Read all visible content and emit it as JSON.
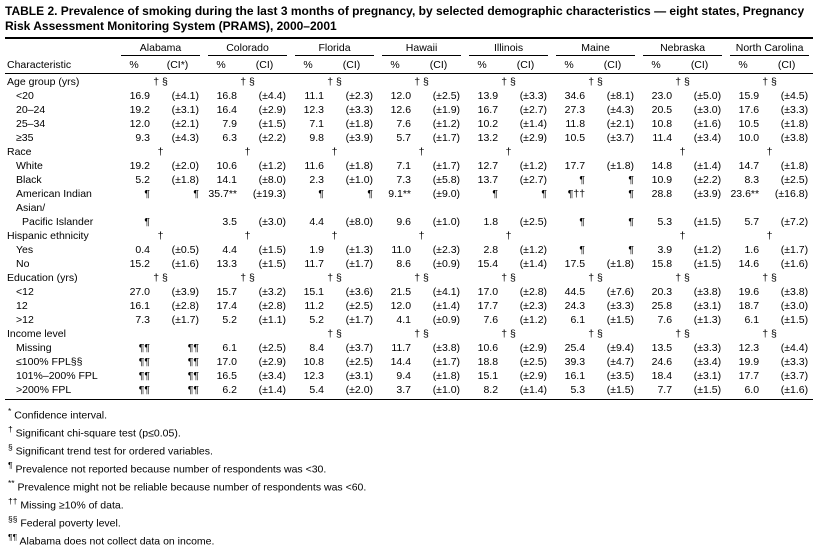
{
  "title": "TABLE 2. Prevalence of smoking during the last 3 months of pregnancy, by selected demographic characteristics — eight states, Pregnancy Risk Assessment Monitoring System (PRAMS), 2000–2001",
  "table": {
    "characteristic_header": "Characteristic",
    "states": [
      {
        "name": "Alabama",
        "pct_label": "%",
        "ci_label": "(CI*)"
      },
      {
        "name": "Colorado",
        "pct_label": "%",
        "ci_label": "(CI)"
      },
      {
        "name": "Florida",
        "pct_label": "%",
        "ci_label": "(CI)"
      },
      {
        "name": "Hawaii",
        "pct_label": "%",
        "ci_label": "(CI)"
      },
      {
        "name": "Illinois",
        "pct_label": "%",
        "ci_label": "(CI)"
      },
      {
        "name": "Maine",
        "pct_label": "%",
        "ci_label": "(CI)"
      },
      {
        "name": "Nebraska",
        "pct_label": "%",
        "ci_label": "(CI)"
      },
      {
        "name": "North Carolina",
        "pct_label": "%",
        "ci_label": "(CI)"
      }
    ],
    "rows": [
      {
        "type": "section",
        "label": "Age group (yrs)",
        "markers": [
          "† §",
          "† §",
          "† §",
          "† §",
          "† §",
          "† §",
          "† §",
          "† §"
        ]
      },
      {
        "type": "data",
        "label": "<20",
        "cells": [
          [
            "16.9",
            "(±4.1)"
          ],
          [
            "16.8",
            "(±4.4)"
          ],
          [
            "11.1",
            "(±2.3)"
          ],
          [
            "12.0",
            "(±2.5)"
          ],
          [
            "13.9",
            "(±3.3)"
          ],
          [
            "34.6",
            "(±8.1)"
          ],
          [
            "23.0",
            "(±5.0)"
          ],
          [
            "15.9",
            "(±4.5)"
          ]
        ]
      },
      {
        "type": "data",
        "label": "20–24",
        "cells": [
          [
            "19.2",
            "(±3.1)"
          ],
          [
            "16.4",
            "(±2.9)"
          ],
          [
            "12.3",
            "(±3.3)"
          ],
          [
            "12.6",
            "(±1.9)"
          ],
          [
            "16.7",
            "(±2.7)"
          ],
          [
            "27.3",
            "(±4.3)"
          ],
          [
            "20.5",
            "(±3.0)"
          ],
          [
            "17.6",
            "(±3.3)"
          ]
        ]
      },
      {
        "type": "data",
        "label": "25–34",
        "cells": [
          [
            "12.0",
            "(±2.1)"
          ],
          [
            "7.9",
            "(±1.5)"
          ],
          [
            "7.1",
            "(±1.8)"
          ],
          [
            "7.6",
            "(±1.2)"
          ],
          [
            "10.2",
            "(±1.4)"
          ],
          [
            "11.8",
            "(±2.1)"
          ],
          [
            "10.8",
            "(±1.6)"
          ],
          [
            "10.5",
            "(±1.8)"
          ]
        ]
      },
      {
        "type": "data",
        "label": "≥35",
        "cells": [
          [
            "9.3",
            "(±4.3)"
          ],
          [
            "6.3",
            "(±2.2)"
          ],
          [
            "9.8",
            "(±3.9)"
          ],
          [
            "5.7",
            "(±1.7)"
          ],
          [
            "13.2",
            "(±2.9)"
          ],
          [
            "10.5",
            "(±3.7)"
          ],
          [
            "11.4",
            "(±3.4)"
          ],
          [
            "10.0",
            "(±3.8)"
          ]
        ]
      },
      {
        "type": "section",
        "label": "Race",
        "markers": [
          "†",
          "†",
          "†",
          "†",
          "†",
          "",
          "†",
          "†"
        ]
      },
      {
        "type": "data",
        "label": "White",
        "cells": [
          [
            "19.2",
            "(±2.0)"
          ],
          [
            "10.6",
            "(±1.2)"
          ],
          [
            "11.6",
            "(±1.8)"
          ],
          [
            "7.1",
            "(±1.7)"
          ],
          [
            "12.7",
            "(±1.2)"
          ],
          [
            "17.7",
            "(±1.8)"
          ],
          [
            "14.8",
            "(±1.4)"
          ],
          [
            "14.7",
            "(±1.8)"
          ]
        ]
      },
      {
        "type": "data",
        "label": "Black",
        "cells": [
          [
            "5.2",
            "(±1.8)"
          ],
          [
            "14.1",
            "(±8.0)"
          ],
          [
            "2.3",
            "(±1.0)"
          ],
          [
            "7.3",
            "(±5.8)"
          ],
          [
            "13.7",
            "(±2.7)"
          ],
          [
            "¶",
            "¶"
          ],
          [
            "10.9",
            "(±2.2)"
          ],
          [
            "8.3",
            "(±2.5)"
          ]
        ]
      },
      {
        "type": "data",
        "label": "American Indian",
        "cells": [
          [
            "¶",
            "¶"
          ],
          [
            "35.7**",
            "(±19.3)"
          ],
          [
            "¶",
            "¶"
          ],
          [
            "9.1**",
            "(±9.0)"
          ],
          [
            "¶",
            "¶"
          ],
          [
            "¶††",
            "¶"
          ],
          [
            "28.8",
            "(±3.9)"
          ],
          [
            "23.6**",
            "(±16.8)"
          ]
        ]
      },
      {
        "type": "label",
        "label": "Asian/"
      },
      {
        "type": "data",
        "label": "Pacific Islander",
        "indent": 2,
        "cells": [
          [
            "¶",
            ""
          ],
          [
            "3.5",
            "(±3.0)"
          ],
          [
            "4.4",
            "(±8.0)"
          ],
          [
            "9.6",
            "(±1.0)"
          ],
          [
            "1.8",
            "(±2.5)"
          ],
          [
            "¶",
            "¶"
          ],
          [
            "5.3",
            "(±1.5)"
          ],
          [
            "5.7",
            "(±7.2)"
          ]
        ]
      },
      {
        "type": "section",
        "label": "Hispanic ethnicity",
        "markers": [
          "†",
          "†",
          "†",
          "†",
          "†",
          "",
          "†",
          "†"
        ]
      },
      {
        "type": "data",
        "label": "Yes",
        "cells": [
          [
            "0.4",
            "(±0.5)"
          ],
          [
            "4.4",
            "(±1.5)"
          ],
          [
            "1.9",
            "(±1.3)"
          ],
          [
            "11.0",
            "(±2.3)"
          ],
          [
            "2.8",
            "(±1.2)"
          ],
          [
            "¶",
            "¶"
          ],
          [
            "3.9",
            "(±1.2)"
          ],
          [
            "1.6",
            "(±1.7)"
          ]
        ]
      },
      {
        "type": "data",
        "label": "No",
        "cells": [
          [
            "15.2",
            "(±1.6)"
          ],
          [
            "13.3",
            "(±1.5)"
          ],
          [
            "11.7",
            "(±1.7)"
          ],
          [
            "8.6",
            "(±0.9)"
          ],
          [
            "15.4",
            "(±1.4)"
          ],
          [
            "17.5",
            "(±1.8)"
          ],
          [
            "15.8",
            "(±1.5)"
          ],
          [
            "14.6",
            "(±1.6)"
          ]
        ]
      },
      {
        "type": "section",
        "label": "Education (yrs)",
        "markers": [
          "† §",
          "† §",
          "† §",
          "† §",
          "† §",
          "† §",
          "† §",
          "† §"
        ]
      },
      {
        "type": "data",
        "label": "<12",
        "cells": [
          [
            "27.0",
            "(±3.9)"
          ],
          [
            "15.7",
            "(±3.2)"
          ],
          [
            "15.1",
            "(±3.6)"
          ],
          [
            "21.5",
            "(±4.1)"
          ],
          [
            "17.0",
            "(±2.8)"
          ],
          [
            "44.5",
            "(±7.6)"
          ],
          [
            "20.3",
            "(±3.8)"
          ],
          [
            "19.6",
            "(±3.8)"
          ]
        ]
      },
      {
        "type": "data",
        "label": "12",
        "cells": [
          [
            "16.1",
            "(±2.8)"
          ],
          [
            "17.4",
            "(±2.8)"
          ],
          [
            "11.2",
            "(±2.5)"
          ],
          [
            "12.0",
            "(±1.4)"
          ],
          [
            "17.7",
            "(±2.3)"
          ],
          [
            "24.3",
            "(±3.3)"
          ],
          [
            "25.8",
            "(±3.1)"
          ],
          [
            "18.7",
            "(±3.0)"
          ]
        ]
      },
      {
        "type": "data",
        "label": ">12",
        "cells": [
          [
            "7.3",
            "(±1.7)"
          ],
          [
            "5.2",
            "(±1.1)"
          ],
          [
            "5.2",
            "(±1.7)"
          ],
          [
            "4.1",
            "(±0.9)"
          ],
          [
            "7.6",
            "(±1.2)"
          ],
          [
            "6.1",
            "(±1.5)"
          ],
          [
            "7.6",
            "(±1.3)"
          ],
          [
            "6.1",
            "(±1.5)"
          ]
        ]
      },
      {
        "type": "section",
        "label": "Income level",
        "markers": [
          "",
          "",
          "† §",
          "† §",
          "† §",
          "† §",
          "† §",
          "† §"
        ]
      },
      {
        "type": "data",
        "label": "Missing",
        "cells": [
          [
            "¶¶",
            "¶¶"
          ],
          [
            "6.1",
            "(±2.5)"
          ],
          [
            "8.4",
            "(±3.7)"
          ],
          [
            "11.7",
            "(±3.8)"
          ],
          [
            "10.6",
            "(±2.9)"
          ],
          [
            "25.4",
            "(±9.4)"
          ],
          [
            "13.5",
            "(±3.3)"
          ],
          [
            "12.3",
            "(±4.4)"
          ]
        ]
      },
      {
        "type": "data",
        "label": "≤100% FPL§§",
        "cells": [
          [
            "¶¶",
            "¶¶"
          ],
          [
            "17.0",
            "(±2.9)"
          ],
          [
            "10.8",
            "(±2.5)"
          ],
          [
            "14.4",
            "(±1.7)"
          ],
          [
            "18.8",
            "(±2.5)"
          ],
          [
            "39.3",
            "(±4.7)"
          ],
          [
            "24.6",
            "(±3.4)"
          ],
          [
            "19.9",
            "(±3.3)"
          ]
        ]
      },
      {
        "type": "data",
        "label": "101%–200% FPL",
        "cells": [
          [
            "¶¶",
            "¶¶"
          ],
          [
            "16.5",
            "(±3.4)"
          ],
          [
            "12.3",
            "(±3.1)"
          ],
          [
            "9.4",
            "(±1.8)"
          ],
          [
            "15.1",
            "(±2.9)"
          ],
          [
            "16.1",
            "(±3.5)"
          ],
          [
            "18.4",
            "(±3.1)"
          ],
          [
            "17.7",
            "(±3.7)"
          ]
        ]
      },
      {
        "type": "data",
        "label": ">200% FPL",
        "cells": [
          [
            "¶¶",
            "¶¶"
          ],
          [
            "6.2",
            "(±1.4)"
          ],
          [
            "5.4",
            "(±2.0)"
          ],
          [
            "3.7",
            "(±1.0)"
          ],
          [
            "8.2",
            "(±1.4)"
          ],
          [
            "5.3",
            "(±1.5)"
          ],
          [
            "7.7",
            "(±1.5)"
          ],
          [
            "6.0",
            "(±1.6)"
          ]
        ]
      }
    ]
  },
  "footnotes": [
    {
      "marker": "*",
      "text": "Confidence interval."
    },
    {
      "marker": "†",
      "text": "Significant chi-square test (p≤0.05)."
    },
    {
      "marker": "§",
      "text": "Significant trend test for ordered variables."
    },
    {
      "marker": "¶",
      "text": "Prevalence not reported because number of respondents was <30."
    },
    {
      "marker": "**",
      "text": "Prevalence might not be reliable because number of respondents was <60."
    },
    {
      "marker": "††",
      "text": "Missing ≥10% of data."
    },
    {
      "marker": "§§",
      "text": "Federal poverty level."
    },
    {
      "marker": "¶¶",
      "text": "Alabama does not collect data on income."
    }
  ]
}
